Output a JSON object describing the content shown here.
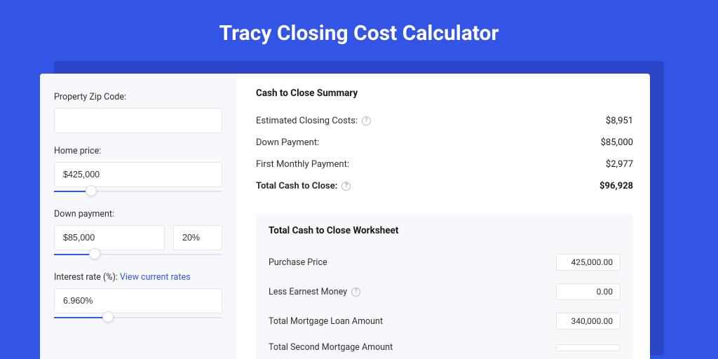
{
  "colors": {
    "page_bg": "#3355e6",
    "shadow_bg": "#2b46c8",
    "card_bg": "#ffffff",
    "panel_bg": "#f7f8fc",
    "border": "#e4e6ef",
    "text": "#303030",
    "link": "#3355e6"
  },
  "title": "Tracy Closing Cost Calculator",
  "form": {
    "zip_label": "Property Zip Code:",
    "zip_value": "",
    "home_price_label": "Home price:",
    "home_price_value": "$425,000",
    "home_price_slider_pct": 22,
    "down_payment_label": "Down payment:",
    "down_payment_value": "$85,000",
    "down_payment_pct_value": "20%",
    "down_payment_slider_pct": 24,
    "interest_label": "Interest rate (%): ",
    "interest_link": "View current rates",
    "interest_value": "6.960%",
    "interest_slider_pct": 32
  },
  "summary": {
    "title": "Cash to Close Summary",
    "rows": [
      {
        "label": "Estimated Closing Costs:",
        "help": true,
        "value": "$8,951"
      },
      {
        "label": "Down Payment:",
        "help": false,
        "value": "$85,000"
      },
      {
        "label": "First Monthly Payment:",
        "help": false,
        "value": "$2,977"
      }
    ],
    "total": {
      "label": "Total Cash to Close:",
      "help": true,
      "value": "$96,928"
    }
  },
  "worksheet": {
    "title": "Total Cash to Close Worksheet",
    "rows": [
      {
        "label": "Purchase Price",
        "help": false,
        "value": "425,000.00"
      },
      {
        "label": "Less Earnest Money",
        "help": true,
        "value": "0.00"
      },
      {
        "label": "Total Mortgage Loan Amount",
        "help": false,
        "value": "340,000.00"
      },
      {
        "label": "Total Second Mortgage Amount",
        "help": false,
        "value": ""
      }
    ]
  }
}
